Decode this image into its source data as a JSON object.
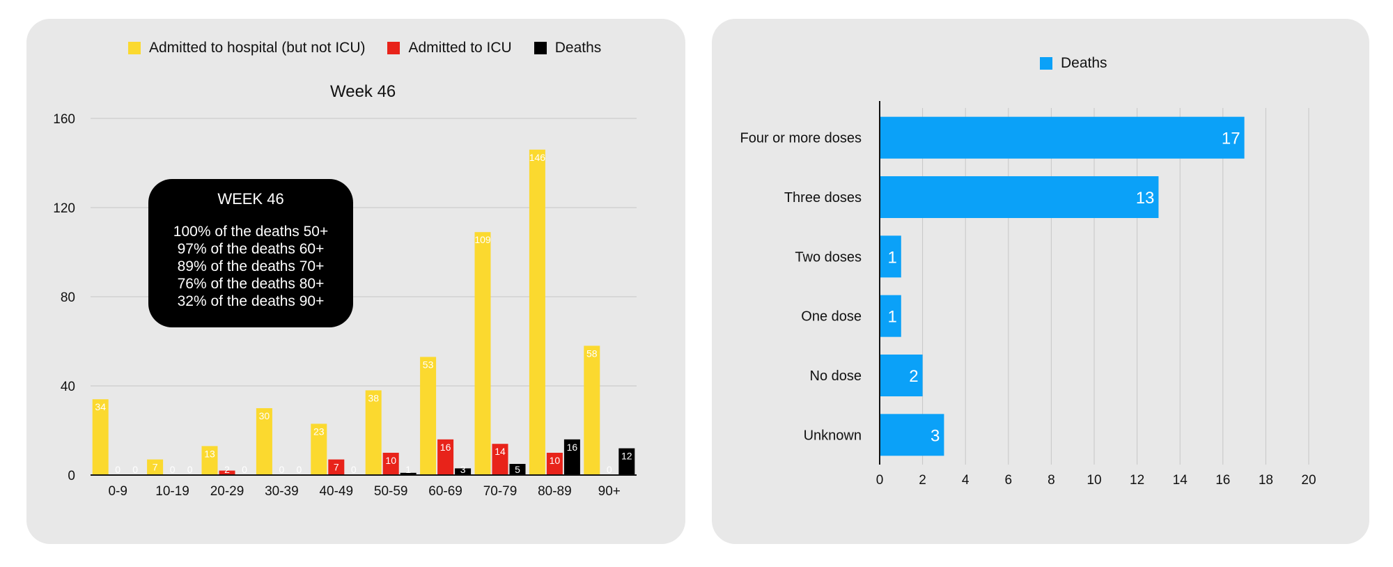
{
  "colors": {
    "hospital": "#fbd92f",
    "icu": "#e8231a",
    "deaths_left": "#000000",
    "deaths_right": "#0ba1f8",
    "grid": "#c6c6c6",
    "axis": "#111111"
  },
  "callout": {
    "title": "WEEK 46",
    "lines": [
      "100% of the deaths 50+",
      "97% of the deaths 60+",
      "89% of the deaths 70+",
      "76% of the deaths 80+",
      "32% of the deaths 90+"
    ]
  },
  "chart_data": [
    {
      "type": "bar",
      "title": "Week 46",
      "categories": [
        "0-9",
        "10-19",
        "20-29",
        "30-39",
        "40-49",
        "50-59",
        "60-69",
        "70-79",
        "80-89",
        "90+"
      ],
      "series": [
        {
          "name": "Admitted to hospital (but not ICU)",
          "values": [
            34,
            7,
            13,
            30,
            23,
            38,
            53,
            109,
            146,
            58
          ]
        },
        {
          "name": "Admitted to ICU",
          "values": [
            0,
            0,
            2,
            0,
            7,
            10,
            16,
            14,
            10,
            0
          ]
        },
        {
          "name": "Deaths",
          "values": [
            0,
            0,
            0,
            0,
            0,
            1,
            3,
            5,
            16,
            12
          ]
        }
      ],
      "yticks": [
        0,
        40,
        80,
        120,
        160
      ],
      "ylim": [
        0,
        160
      ],
      "legend": "top",
      "grid": true
    },
    {
      "type": "bar",
      "orientation": "horizontal",
      "categories": [
        "Four or more doses",
        "Three doses",
        "Two doses",
        "One dose",
        "No dose",
        "Unknown"
      ],
      "series": [
        {
          "name": "Deaths",
          "values": [
            17,
            13,
            1,
            1,
            2,
            3
          ]
        }
      ],
      "xticks": [
        0,
        2,
        4,
        6,
        8,
        10,
        12,
        14,
        16,
        18,
        20
      ],
      "xlim": [
        0,
        20
      ],
      "legend": "top",
      "grid": true
    }
  ]
}
